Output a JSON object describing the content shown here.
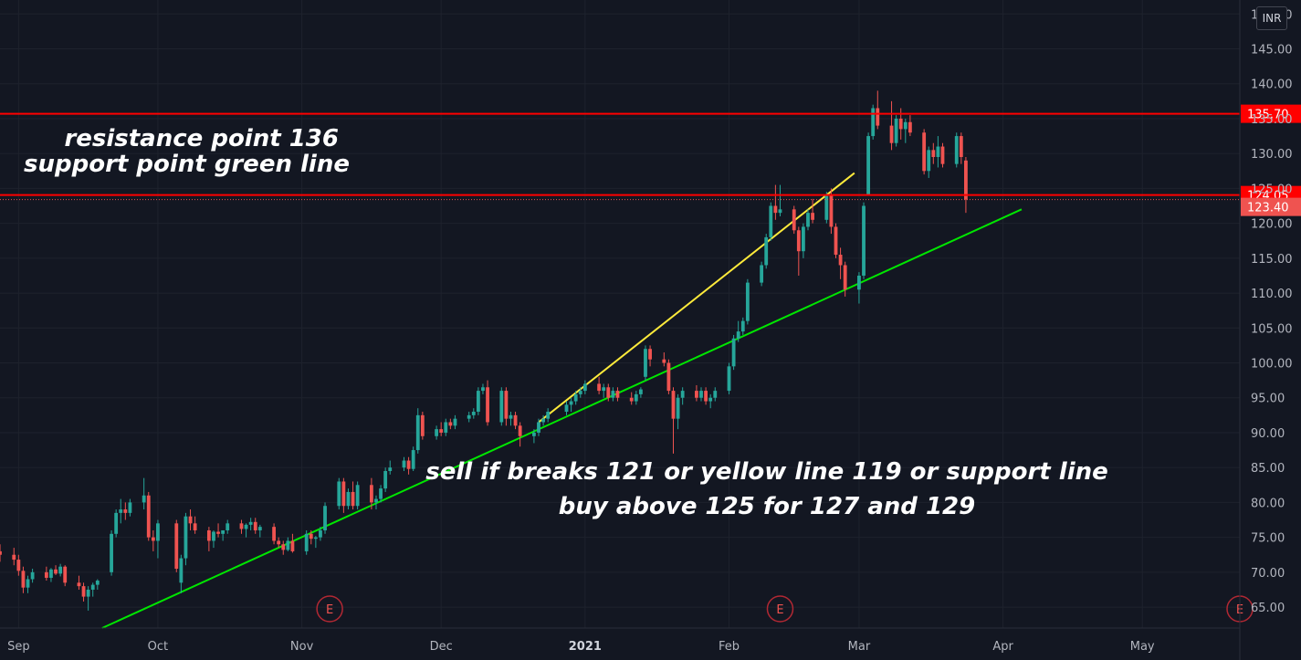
{
  "chart_data": {
    "type": "candlestick",
    "currency": "INR",
    "colors": {
      "background": "#131722",
      "grid": "#1e222d",
      "up": "#26a69a",
      "down": "#ef5350",
      "resistance": "#ff0000",
      "trend_yellow": "#ffeb3b",
      "trend_green": "#00e600",
      "last_price_tag": "#ef5350"
    },
    "ylim": [
      62,
      152
    ],
    "y_ticks": [
      "65.00",
      "70.00",
      "75.00",
      "80.00",
      "85.00",
      "90.00",
      "95.00",
      "100.00",
      "105.00",
      "110.00",
      "115.00",
      "120.00",
      "125.00",
      "130.00",
      "135.00",
      "140.00",
      "145.00",
      "150.00"
    ],
    "x_ticks": [
      {
        "label": "Sep",
        "date": "2020-09-01"
      },
      {
        "label": "Oct",
        "date": "2020-10-01"
      },
      {
        "label": "Nov",
        "date": "2020-11-01"
      },
      {
        "label": "Dec",
        "date": "2020-12-01"
      },
      {
        "label": "2021",
        "date": "2021-01-01",
        "bold": true
      },
      {
        "label": "Feb",
        "date": "2021-02-01"
      },
      {
        "label": "Mar",
        "date": "2021-03-01"
      },
      {
        "label": "Apr",
        "date": "2021-04-01"
      },
      {
        "label": "May",
        "date": "2021-05-01"
      }
    ],
    "xlim": [
      "2020-08-28",
      "2021-05-22"
    ],
    "horizontal_lines": [
      {
        "name": "resistance",
        "value": 135.7,
        "label": "135.70"
      },
      {
        "name": "support",
        "value": 124.05,
        "label": "124.05"
      }
    ],
    "last_price": {
      "value": 123.4,
      "label": "123.40"
    },
    "trend_lines": [
      {
        "name": "yellow",
        "from": {
          "date": "2020-12-22",
          "value": 91.5
        },
        "to": {
          "date": "2021-02-28",
          "value": 127.2
        }
      },
      {
        "name": "green",
        "from": {
          "date": "2020-09-19",
          "value": 62.0
        },
        "to": {
          "date": "2021-04-05",
          "value": 122.0
        }
      }
    ],
    "earnings_markers": [
      {
        "label": "E",
        "date": "2020-11-07"
      },
      {
        "label": "E",
        "date": "2021-02-12"
      },
      {
        "label": "E",
        "date": "2021-05-22"
      }
    ],
    "candles": [
      [
        "2020-08-28",
        73.0,
        74.0,
        71.5,
        72.5
      ],
      [
        "2020-08-31",
        72.5,
        73.5,
        71.0,
        71.8
      ],
      [
        "2020-09-01",
        71.8,
        72.5,
        69.5,
        70.2
      ],
      [
        "2020-09-02",
        70.2,
        70.8,
        67.0,
        67.8
      ],
      [
        "2020-09-03",
        67.8,
        69.5,
        67.0,
        69.0
      ],
      [
        "2020-09-04",
        69.0,
        70.5,
        68.5,
        70.0
      ],
      [
        "2020-09-07",
        70.0,
        70.8,
        68.8,
        69.2
      ],
      [
        "2020-09-08",
        69.2,
        70.6,
        68.6,
        70.4
      ],
      [
        "2020-09-09",
        70.4,
        71.0,
        69.6,
        69.8
      ],
      [
        "2020-09-10",
        69.8,
        71.2,
        69.4,
        70.8
      ],
      [
        "2020-09-11",
        70.8,
        71.0,
        68.0,
        68.5
      ],
      [
        "2020-09-14",
        68.5,
        69.5,
        67.5,
        68.0
      ],
      [
        "2020-09-15",
        68.0,
        68.5,
        65.8,
        66.5
      ],
      [
        "2020-09-16",
        66.5,
        68.0,
        64.5,
        67.5
      ],
      [
        "2020-09-17",
        67.5,
        68.5,
        66.5,
        68.2
      ],
      [
        "2020-09-18",
        68.2,
        69.0,
        67.5,
        68.8
      ],
      [
        "2020-09-21",
        70.0,
        76.0,
        69.5,
        75.5
      ],
      [
        "2020-09-22",
        75.5,
        79.0,
        75.0,
        78.5
      ],
      [
        "2020-09-23",
        78.5,
        80.5,
        77.0,
        79.0
      ],
      [
        "2020-09-24",
        79.0,
        80.0,
        77.5,
        78.5
      ],
      [
        "2020-09-25",
        78.5,
        80.5,
        78.0,
        80.0
      ],
      [
        "2020-09-28",
        80.0,
        83.5,
        79.0,
        81.0
      ],
      [
        "2020-09-29",
        81.0,
        81.5,
        74.5,
        75.0
      ],
      [
        "2020-09-30",
        75.0,
        76.0,
        73.0,
        74.5
      ],
      [
        "2020-10-01",
        74.5,
        77.5,
        72.0,
        77.0
      ],
      [
        "2020-10-05",
        77.0,
        77.5,
        70.0,
        70.5
      ],
      [
        "2020-10-06",
        68.5,
        72.5,
        67.0,
        72.0
      ],
      [
        "2020-10-07",
        72.0,
        78.5,
        71.0,
        78.0
      ],
      [
        "2020-10-08",
        78.0,
        79.0,
        76.0,
        77.0
      ],
      [
        "2020-10-09",
        77.0,
        78.0,
        75.5,
        76.0
      ],
      [
        "2020-10-12",
        76.0,
        76.5,
        73.0,
        74.5
      ],
      [
        "2020-10-13",
        74.5,
        76.0,
        73.5,
        75.8
      ],
      [
        "2020-10-14",
        75.8,
        77.0,
        75.0,
        75.5
      ],
      [
        "2020-10-15",
        75.5,
        76.0,
        74.5,
        76.0
      ],
      [
        "2020-10-16",
        76.0,
        77.5,
        75.5,
        77.0
      ],
      [
        "2020-10-19",
        77.0,
        77.5,
        75.5,
        76.2
      ],
      [
        "2020-10-20",
        76.2,
        77.0,
        75.0,
        76.8
      ],
      [
        "2020-10-21",
        76.8,
        77.8,
        76.0,
        77.2
      ],
      [
        "2020-10-22",
        77.2,
        77.8,
        75.5,
        76.0
      ],
      [
        "2020-10-23",
        76.0,
        76.8,
        75.0,
        76.5
      ],
      [
        "2020-10-26",
        76.5,
        77.0,
        74.0,
        74.5
      ],
      [
        "2020-10-27",
        74.5,
        75.0,
        73.5,
        74.0
      ],
      [
        "2020-10-28",
        74.0,
        74.5,
        72.5,
        73.2
      ],
      [
        "2020-10-29",
        73.2,
        75.0,
        73.0,
        74.5
      ],
      [
        "2020-10-30",
        74.5,
        75.5,
        72.8,
        73.0
      ],
      [
        "2020-11-02",
        73.0,
        76.0,
        72.5,
        75.5
      ],
      [
        "2020-11-03",
        75.5,
        76.0,
        74.0,
        74.8
      ],
      [
        "2020-11-04",
        74.8,
        75.2,
        73.5,
        75.0
      ],
      [
        "2020-11-05",
        75.0,
        76.5,
        74.5,
        76.0
      ],
      [
        "2020-11-06",
        76.0,
        80.0,
        75.5,
        79.5
      ],
      [
        "2020-11-09",
        79.5,
        83.5,
        79.0,
        83.0
      ],
      [
        "2020-11-10",
        83.0,
        83.5,
        78.5,
        79.5
      ],
      [
        "2020-11-11",
        79.5,
        82.0,
        79.0,
        81.5
      ],
      [
        "2020-11-12",
        81.5,
        83.0,
        79.0,
        79.5
      ],
      [
        "2020-11-13",
        79.5,
        83.0,
        79.0,
        82.5
      ],
      [
        "2020-11-16",
        82.5,
        83.5,
        79.0,
        80.0
      ],
      [
        "2020-11-17",
        80.0,
        81.0,
        79.0,
        80.5
      ],
      [
        "2020-11-18",
        80.5,
        82.5,
        80.0,
        82.0
      ],
      [
        "2020-11-19",
        82.0,
        85.0,
        81.5,
        84.5
      ],
      [
        "2020-11-20",
        84.5,
        86.0,
        84.0,
        85.0
      ],
      [
        "2020-11-23",
        85.0,
        86.5,
        84.5,
        86.0
      ],
      [
        "2020-11-24",
        86.0,
        86.5,
        84.0,
        84.8
      ],
      [
        "2020-11-25",
        84.8,
        88.0,
        84.5,
        87.5
      ],
      [
        "2020-11-26",
        87.5,
        93.5,
        87.0,
        92.5
      ],
      [
        "2020-11-27",
        92.5,
        93.0,
        89.0,
        89.5
      ],
      [
        "2020-11-30",
        89.5,
        91.0,
        89.0,
        90.5
      ],
      [
        "2020-12-01",
        90.5,
        91.5,
        89.5,
        90.0
      ],
      [
        "2020-12-02",
        90.0,
        92.0,
        89.5,
        91.5
      ],
      [
        "2020-12-03",
        91.5,
        92.0,
        90.5,
        91.0
      ],
      [
        "2020-12-04",
        91.0,
        92.5,
        90.5,
        92.0
      ],
      [
        "2020-12-07",
        92.0,
        93.0,
        91.5,
        92.5
      ],
      [
        "2020-12-08",
        92.5,
        93.5,
        92.0,
        93.0
      ],
      [
        "2020-12-09",
        93.0,
        96.5,
        92.5,
        96.0
      ],
      [
        "2020-12-10",
        96.0,
        97.0,
        95.5,
        96.5
      ],
      [
        "2020-12-11",
        96.5,
        97.5,
        91.0,
        91.5
      ],
      [
        "2020-12-14",
        91.5,
        96.5,
        91.0,
        96.0
      ],
      [
        "2020-12-15",
        96.0,
        96.5,
        91.0,
        92.0
      ],
      [
        "2020-12-16",
        92.0,
        93.0,
        91.0,
        92.5
      ],
      [
        "2020-12-17",
        92.5,
        93.0,
        90.5,
        91.0
      ],
      [
        "2020-12-18",
        91.0,
        91.5,
        88.0,
        89.5
      ],
      [
        "2020-12-21",
        89.5,
        90.5,
        88.5,
        90.0
      ],
      [
        "2020-12-22",
        90.0,
        92.0,
        89.5,
        91.5
      ],
      [
        "2020-12-23",
        91.5,
        92.5,
        91.0,
        92.0
      ],
      [
        "2020-12-24",
        92.0,
        93.5,
        91.5,
        93.0
      ],
      [
        "2020-12-28",
        93.0,
        94.5,
        92.5,
        94.0
      ],
      [
        "2020-12-29",
        94.0,
        95.0,
        93.0,
        94.5
      ],
      [
        "2020-12-30",
        94.5,
        96.0,
        94.0,
        95.5
      ],
      [
        "2020-12-31",
        95.5,
        96.5,
        95.0,
        96.0
      ],
      [
        "2021-01-01",
        96.0,
        97.5,
        95.5,
        97.0
      ],
      [
        "2021-01-04",
        97.0,
        98.0,
        95.5,
        96.0
      ],
      [
        "2021-01-05",
        96.0,
        97.0,
        95.0,
        96.5
      ],
      [
        "2021-01-06",
        96.5,
        97.0,
        94.5,
        95.0
      ],
      [
        "2021-01-07",
        95.0,
        96.5,
        94.5,
        96.0
      ],
      [
        "2021-01-08",
        96.0,
        96.5,
        94.5,
        95.0
      ],
      [
        "2021-01-11",
        95.0,
        95.8,
        94.0,
        94.5
      ],
      [
        "2021-01-12",
        94.5,
        96.0,
        94.0,
        95.5
      ],
      [
        "2021-01-13",
        95.5,
        96.5,
        95.0,
        96.2
      ],
      [
        "2021-01-14",
        98.0,
        102.5,
        97.5,
        102.0
      ],
      [
        "2021-01-15",
        102.0,
        102.5,
        99.5,
        100.5
      ],
      [
        "2021-01-18",
        100.5,
        101.5,
        99.5,
        100.0
      ],
      [
        "2021-01-19",
        100.0,
        100.5,
        95.5,
        96.0
      ],
      [
        "2021-01-20",
        96.0,
        96.5,
        87.0,
        92.0
      ],
      [
        "2021-01-21",
        92.0,
        95.5,
        90.5,
        95.0
      ],
      [
        "2021-01-22",
        95.0,
        96.5,
        94.0,
        96.0
      ],
      [
        "2021-01-25",
        96.0,
        96.8,
        94.5,
        95.0
      ],
      [
        "2021-01-26",
        95.0,
        96.5,
        94.5,
        96.0
      ],
      [
        "2021-01-27",
        96.0,
        96.5,
        94.0,
        94.5
      ],
      [
        "2021-01-28",
        94.5,
        95.5,
        93.5,
        95.0
      ],
      [
        "2021-01-29",
        95.0,
        96.5,
        94.5,
        96.0
      ],
      [
        "2021-02-01",
        96.0,
        100.0,
        95.5,
        99.5
      ],
      [
        "2021-02-02",
        99.5,
        104.0,
        99.0,
        103.5
      ],
      [
        "2021-02-03",
        103.5,
        106.0,
        103.0,
        104.5
      ],
      [
        "2021-02-04",
        104.5,
        106.5,
        104.0,
        106.0
      ],
      [
        "2021-02-05",
        106.0,
        112.0,
        105.5,
        111.5
      ],
      [
        "2021-02-08",
        111.5,
        114.5,
        111.0,
        114.0
      ],
      [
        "2021-02-09",
        114.0,
        118.5,
        113.5,
        118.0
      ],
      [
        "2021-02-10",
        118.0,
        123.0,
        117.5,
        122.5
      ],
      [
        "2021-02-11",
        122.5,
        125.5,
        120.5,
        121.5
      ],
      [
        "2021-02-12",
        121.5,
        125.5,
        121.0,
        122.0
      ],
      [
        "2021-02-15",
        122.0,
        122.5,
        118.5,
        119.0
      ],
      [
        "2021-02-16",
        119.0,
        119.5,
        112.5,
        116.0
      ],
      [
        "2021-02-17",
        116.0,
        120.0,
        115.0,
        119.5
      ],
      [
        "2021-02-18",
        119.5,
        122.0,
        119.0,
        121.5
      ],
      [
        "2021-02-19",
        121.5,
        123.5,
        120.0,
        120.5
      ],
      [
        "2021-02-22",
        120.5,
        124.5,
        120.0,
        124.0
      ],
      [
        "2021-02-23",
        124.0,
        125.0,
        118.5,
        119.5
      ],
      [
        "2021-02-24",
        119.5,
        120.0,
        115.0,
        115.5
      ],
      [
        "2021-02-25",
        115.5,
        116.5,
        112.0,
        114.0
      ],
      [
        "2021-02-26",
        114.0,
        114.5,
        109.5,
        110.5
      ],
      [
        "2021-03-01",
        110.5,
        113.0,
        108.5,
        112.5
      ],
      [
        "2021-03-02",
        112.5,
        123.0,
        112.0,
        122.5
      ],
      [
        "2021-03-03",
        124.0,
        133.0,
        124.0,
        132.5
      ],
      [
        "2021-03-04",
        132.5,
        137.0,
        132.0,
        136.5
      ],
      [
        "2021-03-05",
        136.5,
        139.0,
        133.5,
        134.0
      ],
      [
        "2021-03-08",
        134.0,
        137.5,
        130.5,
        131.5
      ],
      [
        "2021-03-09",
        131.5,
        135.5,
        131.0,
        135.0
      ],
      [
        "2021-03-10",
        135.0,
        136.5,
        132.0,
        133.5
      ],
      [
        "2021-03-11",
        133.5,
        135.0,
        131.5,
        134.5
      ],
      [
        "2021-03-12",
        134.5,
        135.5,
        132.5,
        133.0
      ],
      [
        "2021-03-15",
        133.0,
        133.5,
        127.0,
        127.5
      ],
      [
        "2021-03-16",
        127.5,
        131.0,
        126.5,
        130.5
      ],
      [
        "2021-03-17",
        130.5,
        131.5,
        128.5,
        129.5
      ],
      [
        "2021-03-18",
        129.5,
        132.5,
        128.0,
        131.0
      ],
      [
        "2021-03-19",
        131.0,
        131.5,
        128.0,
        128.5
      ],
      [
        "2021-03-22",
        128.5,
        133.0,
        128.0,
        132.5
      ],
      [
        "2021-03-23",
        132.5,
        133.0,
        128.5,
        129.5
      ],
      [
        "2021-03-24",
        129.0,
        129.5,
        121.5,
        123.4
      ]
    ]
  },
  "annotations": {
    "line1": "resistance point 136",
    "line2": "support point green line",
    "line3": "sell if breaks 121 or yellow line 119 or support line",
    "line4": "buy above 125 for 127 and 129"
  },
  "currency_badge": "INR"
}
